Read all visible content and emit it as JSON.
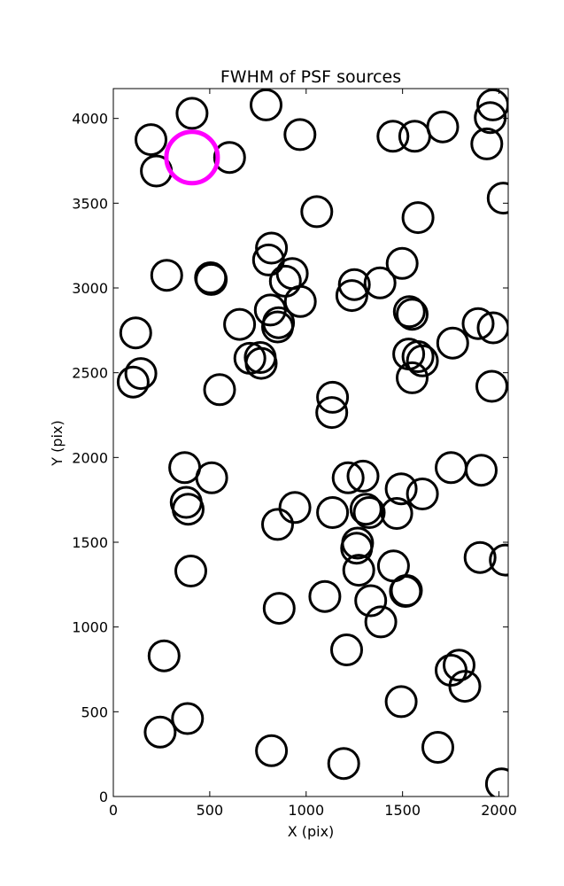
{
  "chart_data": {
    "type": "scatter",
    "title": "FWHM of PSF sources",
    "xlabel": "X (pix)",
    "ylabel": "Y (pix)",
    "xlim": [
      0,
      2048
    ],
    "ylim": [
      0,
      4176
    ],
    "xticks": [
      0,
      500,
      1000,
      1500,
      2000
    ],
    "yticks": [
      0,
      500,
      1000,
      1500,
      2000,
      2500,
      3000,
      3500,
      4000
    ],
    "grid": false,
    "marker": "open-circle",
    "edge_color": "#000000",
    "highlight_color": "#ff00ff",
    "highlight": {
      "x": 408,
      "y": 3770
    },
    "points": [
      {
        "x": 408,
        "y": 4030
      },
      {
        "x": 792,
        "y": 4080
      },
      {
        "x": 195,
        "y": 3875
      },
      {
        "x": 223,
        "y": 3690
      },
      {
        "x": 603,
        "y": 3770
      },
      {
        "x": 968,
        "y": 3905
      },
      {
        "x": 1450,
        "y": 3895
      },
      {
        "x": 1563,
        "y": 3895
      },
      {
        "x": 1708,
        "y": 3950
      },
      {
        "x": 1968,
        "y": 4080
      },
      {
        "x": 1955,
        "y": 4005
      },
      {
        "x": 1937,
        "y": 3850
      },
      {
        "x": 2022,
        "y": 3530
      },
      {
        "x": 1055,
        "y": 3450
      },
      {
        "x": 1580,
        "y": 3415
      },
      {
        "x": 820,
        "y": 3235
      },
      {
        "x": 805,
        "y": 3165
      },
      {
        "x": 277,
        "y": 3075
      },
      {
        "x": 504,
        "y": 3060
      },
      {
        "x": 508,
        "y": 3050
      },
      {
        "x": 928,
        "y": 3085
      },
      {
        "x": 892,
        "y": 3040
      },
      {
        "x": 1250,
        "y": 3020
      },
      {
        "x": 1237,
        "y": 2955
      },
      {
        "x": 1383,
        "y": 3030
      },
      {
        "x": 1498,
        "y": 3145
      },
      {
        "x": 970,
        "y": 2920
      },
      {
        "x": 814,
        "y": 2870
      },
      {
        "x": 857,
        "y": 2795
      },
      {
        "x": 852,
        "y": 2770
      },
      {
        "x": 655,
        "y": 2785
      },
      {
        "x": 116,
        "y": 2735
      },
      {
        "x": 1535,
        "y": 2860
      },
      {
        "x": 1550,
        "y": 2845
      },
      {
        "x": 1892,
        "y": 2790
      },
      {
        "x": 1970,
        "y": 2765
      },
      {
        "x": 708,
        "y": 2585
      },
      {
        "x": 762,
        "y": 2590
      },
      {
        "x": 767,
        "y": 2555
      },
      {
        "x": 143,
        "y": 2495
      },
      {
        "x": 103,
        "y": 2445
      },
      {
        "x": 551,
        "y": 2400
      },
      {
        "x": 1532,
        "y": 2610
      },
      {
        "x": 1580,
        "y": 2595
      },
      {
        "x": 1603,
        "y": 2570
      },
      {
        "x": 1760,
        "y": 2675
      },
      {
        "x": 1550,
        "y": 2470
      },
      {
        "x": 1963,
        "y": 2420
      },
      {
        "x": 1137,
        "y": 2355
      },
      {
        "x": 1133,
        "y": 2265
      },
      {
        "x": 370,
        "y": 1940
      },
      {
        "x": 510,
        "y": 1880
      },
      {
        "x": 1218,
        "y": 1880
      },
      {
        "x": 1295,
        "y": 1890
      },
      {
        "x": 1752,
        "y": 1940
      },
      {
        "x": 1908,
        "y": 1925
      },
      {
        "x": 1493,
        "y": 1815
      },
      {
        "x": 1603,
        "y": 1785
      },
      {
        "x": 378,
        "y": 1735
      },
      {
        "x": 388,
        "y": 1695
      },
      {
        "x": 942,
        "y": 1705
      },
      {
        "x": 1137,
        "y": 1675
      },
      {
        "x": 1310,
        "y": 1695
      },
      {
        "x": 1327,
        "y": 1675
      },
      {
        "x": 1470,
        "y": 1670
      },
      {
        "x": 852,
        "y": 1605
      },
      {
        "x": 1267,
        "y": 1495
      },
      {
        "x": 1262,
        "y": 1465
      },
      {
        "x": 1273,
        "y": 1335
      },
      {
        "x": 1453,
        "y": 1360
      },
      {
        "x": 1520,
        "y": 1215
      },
      {
        "x": 1515,
        "y": 1210
      },
      {
        "x": 1902,
        "y": 1410
      },
      {
        "x": 2033,
        "y": 1395
      },
      {
        "x": 402,
        "y": 1330
      },
      {
        "x": 1097,
        "y": 1180
      },
      {
        "x": 1335,
        "y": 1155
      },
      {
        "x": 1387,
        "y": 1030
      },
      {
        "x": 860,
        "y": 1110
      },
      {
        "x": 1210,
        "y": 865
      },
      {
        "x": 1752,
        "y": 745
      },
      {
        "x": 1793,
        "y": 775
      },
      {
        "x": 1823,
        "y": 650
      },
      {
        "x": 263,
        "y": 830
      },
      {
        "x": 1493,
        "y": 560
      },
      {
        "x": 243,
        "y": 380
      },
      {
        "x": 385,
        "y": 460
      },
      {
        "x": 820,
        "y": 270
      },
      {
        "x": 1195,
        "y": 195
      },
      {
        "x": 1683,
        "y": 290
      },
      {
        "x": 2013,
        "y": 75
      }
    ]
  }
}
